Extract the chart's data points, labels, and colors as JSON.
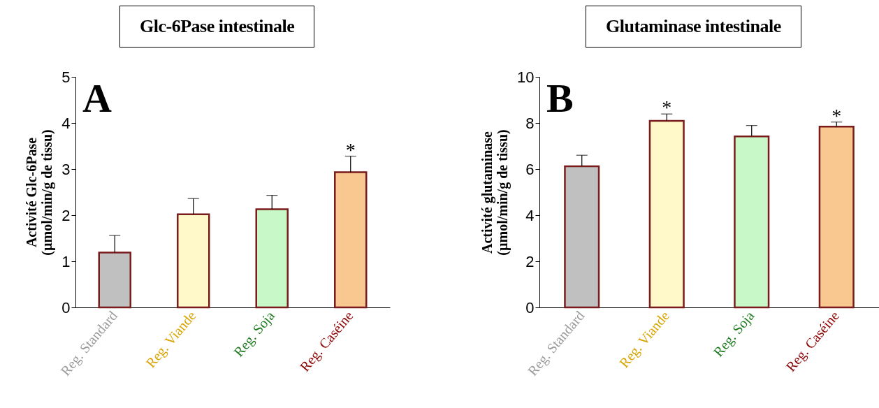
{
  "chart_data": [
    {
      "type": "bar",
      "title": "Glc-6Pase intestinale",
      "ylabel": "Activité Glc-6Pase\n(µmol/min/g de tissu)",
      "categories": [
        "Reg. Standard",
        "Reg. Viande",
        "Reg. Soja",
        "Reg. Caséine"
      ],
      "values": [
        1.19,
        2.02,
        2.13,
        2.93
      ],
      "errors": [
        [
          1.19,
          1.56
        ],
        [
          2.02,
          2.36
        ],
        [
          2.13,
          2.43
        ],
        [
          2.93,
          3.28
        ]
      ],
      "colors": [
        "#c0c0c0",
        "#fff8c8",
        "#c8f8c8",
        "#f8c890"
      ],
      "ylim": [
        0,
        5
      ],
      "yticks": [
        0,
        1,
        2,
        3,
        4,
        5
      ],
      "grid": false,
      "annotations": [
        "A",
        {
          "text": "*",
          "x": "Reg. Caséine",
          "y": 3.28
        }
      ]
    },
    {
      "type": "bar",
      "title": "Glutaminase intestinale",
      "ylabel": "Activité glutaminase\n(µmol/min/g de tissu)",
      "categories": [
        "Reg. Standard",
        "Reg. Viande",
        "Reg. Soja",
        "Reg. Caséine"
      ],
      "values": [
        6.12,
        8.09,
        7.42,
        7.84
      ],
      "errors": [
        [
          6.12,
          6.6
        ],
        [
          8.09,
          8.39
        ],
        [
          7.42,
          7.89
        ],
        [
          7.84,
          8.04
        ]
      ],
      "colors": [
        "#c0c0c0",
        "#fff8c8",
        "#c8f8c8",
        "#f8c890"
      ],
      "ylim": [
        0,
        10
      ],
      "yticks": [
        0,
        2,
        4,
        6,
        8,
        10
      ],
      "grid": false,
      "annotations": [
        "B",
        {
          "text": "*",
          "x": "Reg. Viande",
          "y": 8.39
        },
        {
          "text": "*",
          "x": "Reg. Caséine",
          "y": 8.04
        }
      ]
    }
  ]
}
